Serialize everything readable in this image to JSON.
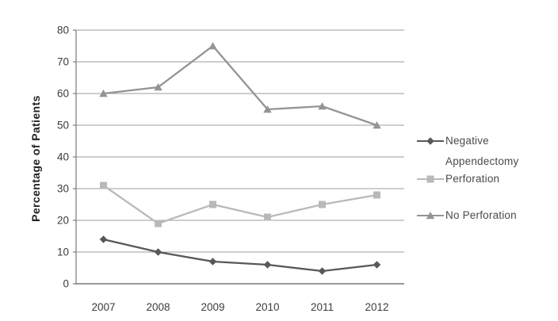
{
  "figure": {
    "y_axis_title": "Percentage of Patients"
  },
  "colors": {
    "background": "#ffffff",
    "negative_series": "#585858",
    "perforation_series": "#b9b9b9",
    "no_perforation_series": "#949494",
    "gridline": "#9e9e9e",
    "axis": "#7a7a7a",
    "tick_label": "#3c3c3c",
    "legend_text": "#4a4a4a"
  },
  "legend": {
    "entries": [
      {
        "label": "Negative",
        "marker": "diamond"
      },
      {
        "line1": "Appendectomy",
        "line2": "Perforation",
        "marker": "square"
      },
      {
        "label": "No Perforation",
        "marker": "triangle"
      }
    ]
  },
  "chart_data": {
    "type": "line",
    "title": "",
    "xlabel": "",
    "ylabel": "Percentage of Patients",
    "categories": [
      "2007",
      "2008",
      "2009",
      "2010",
      "2011",
      "2012"
    ],
    "series": [
      {
        "name": "Negative Appendectomy",
        "marker": "diamond",
        "color": "#585858",
        "values": [
          14,
          10,
          7,
          6,
          4,
          6
        ]
      },
      {
        "name": "Perforation",
        "marker": "square",
        "color": "#b9b9b9",
        "values": [
          31,
          19,
          25,
          21,
          25,
          28
        ]
      },
      {
        "name": "No Perforation",
        "marker": "triangle",
        "color": "#949494",
        "values": [
          60,
          62,
          75,
          55,
          56,
          50
        ]
      }
    ],
    "ylim": [
      0,
      80
    ],
    "ytick_step": 10,
    "grid": true,
    "legend_position": "right"
  }
}
